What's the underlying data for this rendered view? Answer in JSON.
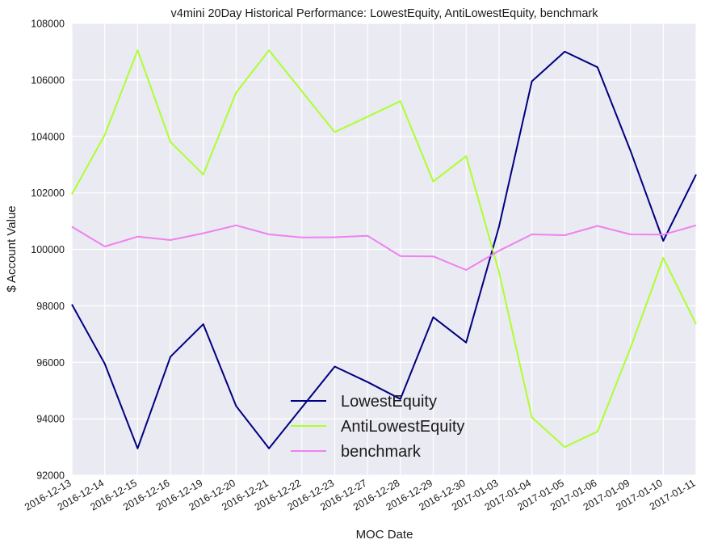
{
  "chart_data": {
    "type": "line",
    "title": "v4mini 20Day Historical Performance: LowestEquity, AntiLowestEquity, benchmark",
    "xlabel": "MOC Date",
    "ylabel": "$ Account Value",
    "ylim": [
      92000,
      108000
    ],
    "yticks": [
      92000,
      94000,
      96000,
      98000,
      100000,
      102000,
      104000,
      106000,
      108000
    ],
    "grid": true,
    "legend_position": "lower-center",
    "categories": [
      "2016-12-13",
      "2016-12-14",
      "2016-12-15",
      "2016-12-16",
      "2016-12-19",
      "2016-12-20",
      "2016-12-21",
      "2016-12-22",
      "2016-12-23",
      "2016-12-27",
      "2016-12-28",
      "2016-12-29",
      "2016-12-30",
      "2017-01-03",
      "2017-01-04",
      "2017-01-05",
      "2017-01-06",
      "2017-01-09",
      "2017-01-10",
      "2017-01-11"
    ],
    "series": [
      {
        "name": "LowestEquity",
        "color": "#000080",
        "values": [
          98050,
          95950,
          92950,
          96200,
          97350,
          94450,
          92950,
          94400,
          95850,
          95300,
          94700,
          97600,
          96700,
          100800,
          105950,
          107000,
          106450,
          103500,
          100300,
          102650
        ]
      },
      {
        "name": "AntiLowestEquity",
        "color": "#adff2f",
        "values": [
          101950,
          104050,
          107050,
          103800,
          102650,
          105550,
          107050,
          105600,
          104150,
          104700,
          105250,
          102400,
          103300,
          99200,
          94050,
          93000,
          93550,
          96500,
          99700,
          97350
        ]
      },
      {
        "name": "benchmark",
        "color": "#ee82ee",
        "values": [
          100800,
          100100,
          100450,
          100330,
          100570,
          100850,
          100530,
          100420,
          100430,
          100480,
          99760,
          99750,
          99270,
          99950,
          100530,
          100500,
          100830,
          100530,
          100520,
          100850
        ]
      }
    ]
  }
}
